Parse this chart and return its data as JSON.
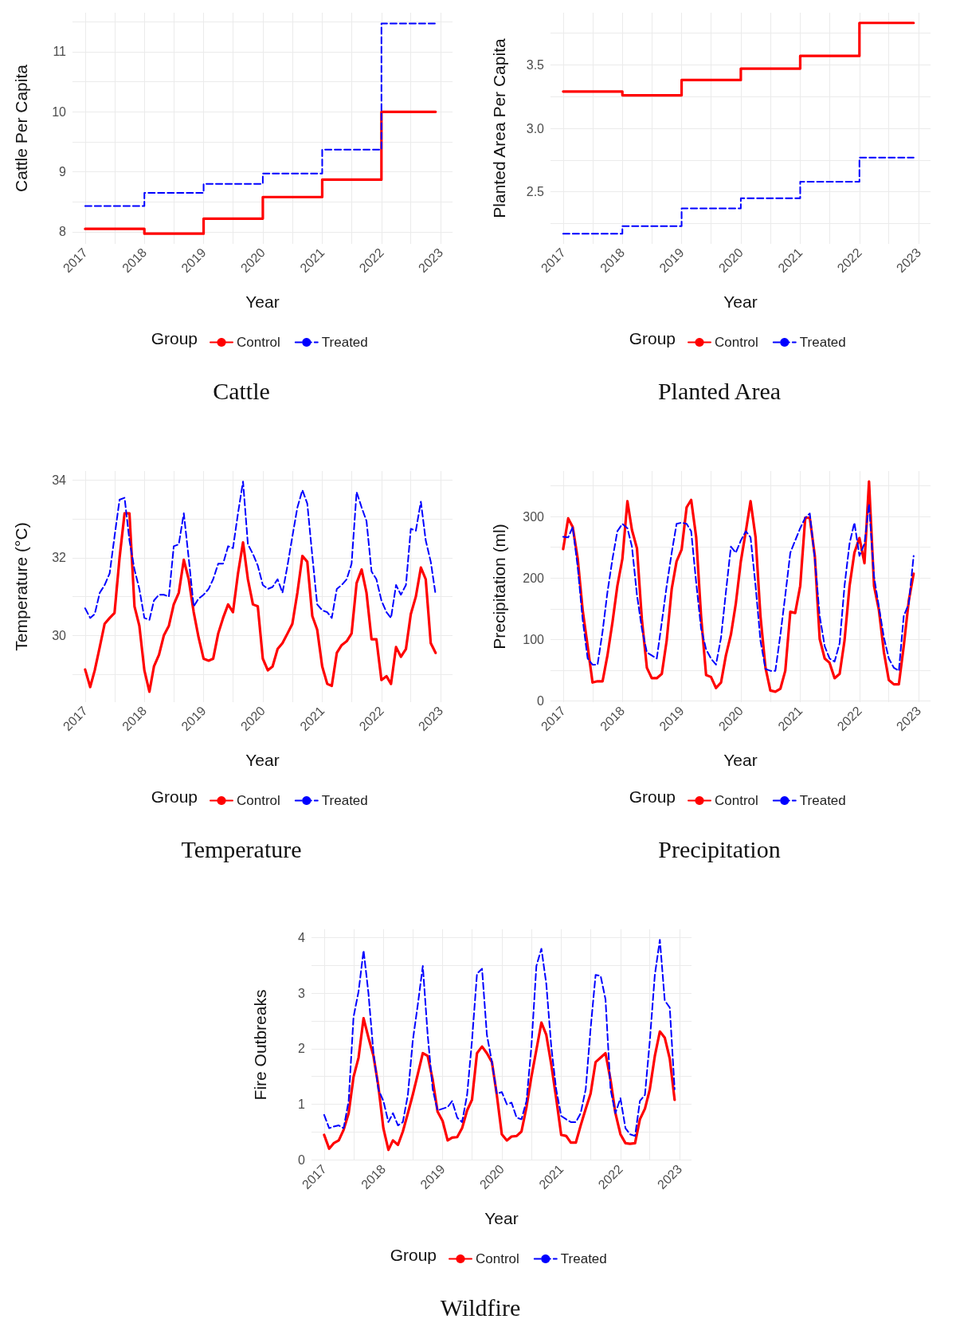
{
  "chart_data": [
    {
      "type": "step",
      "title": "Cattle",
      "xlabel": "Year",
      "ylabel": "Cattle Per Capita",
      "legend_title": "Group",
      "legend": "bottom",
      "grid": true,
      "xlim": [
        "2016-10-15",
        "2023-03-15"
      ],
      "ylim": [
        7.8,
        11.65
      ],
      "xticks": [
        "2017",
        "2018",
        "2019",
        "2020",
        "2021",
        "2022",
        "2023",
        {
          "value": "2017-07",
          "label": null
        },
        {
          "value": "2018-07",
          "label": null
        },
        {
          "value": "2019-07",
          "label": null
        },
        {
          "value": "2020-07",
          "label": null
        },
        {
          "value": "2021-07",
          "label": null
        },
        {
          "value": "2022-07",
          "label": null
        }
      ],
      "yticks": [
        8,
        9,
        10,
        11,
        {
          "value": 8.5,
          "label": null
        },
        {
          "value": 9.5,
          "label": null
        },
        {
          "value": 10.5,
          "label": null
        },
        {
          "value": 11.5,
          "label": null
        }
      ],
      "x": [
        "2017-01",
        "2018-01",
        "2019-01",
        "2020-01",
        "2021-01",
        "2022-01",
        "2022-12"
      ],
      "series": [
        {
          "name": "Control",
          "color": "#ff0000",
          "line_style": "solid",
          "values": [
            8.05,
            7.97,
            8.22,
            8.58,
            8.87,
            10.0,
            10.0
          ]
        },
        {
          "name": "Treated",
          "color": "#0000ff",
          "line_style": "dashed",
          "values": [
            8.43,
            8.65,
            8.8,
            8.97,
            9.37,
            11.47,
            11.47
          ]
        }
      ]
    },
    {
      "type": "step",
      "title": "Planted Area",
      "xlabel": "Year",
      "ylabel": "Planted Area Per Capita",
      "legend_title": "Group",
      "legend": "bottom",
      "grid": true,
      "xlim": [
        "2016-10-15",
        "2023-03-15"
      ],
      "ylim": [
        2.09,
        3.91
      ],
      "xticks": [
        "2017",
        "2018",
        "2019",
        "2020",
        "2021",
        "2022",
        "2023",
        {
          "value": "2017-07",
          "label": null
        },
        {
          "value": "2018-07",
          "label": null
        },
        {
          "value": "2019-07",
          "label": null
        },
        {
          "value": "2020-07",
          "label": null
        },
        {
          "value": "2021-07",
          "label": null
        },
        {
          "value": "2022-07",
          "label": null
        }
      ],
      "yticks": [
        2.5,
        {
          "value": 3,
          "label": "3.0"
        },
        3.5,
        {
          "value": 2.25,
          "label": null
        },
        {
          "value": 2.75,
          "label": null
        },
        {
          "value": 3.25,
          "label": null
        },
        {
          "value": 3.75,
          "label": null
        }
      ],
      "x": [
        "2017-01",
        "2018-01",
        "2019-01",
        "2020-01",
        "2021-01",
        "2022-01",
        "2022-12"
      ],
      "series": [
        {
          "name": "Control",
          "color": "#ff0000",
          "line_style": "solid",
          "values": [
            3.29,
            3.26,
            3.38,
            3.47,
            3.57,
            3.83,
            3.83
          ]
        },
        {
          "name": "Treated",
          "color": "#0000ff",
          "line_style": "dashed",
          "values": [
            2.17,
            2.23,
            2.37,
            2.45,
            2.58,
            2.77,
            2.77
          ]
        }
      ]
    },
    {
      "type": "line",
      "title": "Temperature",
      "xlabel": "Year",
      "ylabel": "Temperature (°C)",
      "legend_title": "Group",
      "legend": "bottom",
      "grid": true,
      "xlim": [
        "2016-10-15",
        "2023-03-15"
      ],
      "ylim": [
        28.28,
        34.24
      ],
      "xticks": [
        "2017",
        "2018",
        "2019",
        "2020",
        "2021",
        "2022",
        "2023",
        {
          "value": "2017-07",
          "label": null
        },
        {
          "value": "2018-07",
          "label": null
        },
        {
          "value": "2019-07",
          "label": null
        },
        {
          "value": "2020-07",
          "label": null
        },
        {
          "value": "2021-07",
          "label": null
        },
        {
          "value": "2022-07",
          "label": null
        }
      ],
      "yticks": [
        30,
        32,
        34,
        {
          "value": 29,
          "label": null
        },
        {
          "value": 31,
          "label": null
        },
        {
          "value": 33,
          "label": null
        }
      ],
      "x": [
        "2017-01",
        "2017-02",
        "2017-03",
        "2017-04",
        "2017-05",
        "2017-06",
        "2017-07",
        "2017-08",
        "2017-09",
        "2017-10",
        "2017-11",
        "2017-12",
        "2018-01",
        "2018-02",
        "2018-03",
        "2018-04",
        "2018-05",
        "2018-06",
        "2018-07",
        "2018-08",
        "2018-09",
        "2018-10",
        "2018-11",
        "2018-12",
        "2019-01",
        "2019-02",
        "2019-03",
        "2019-04",
        "2019-05",
        "2019-06",
        "2019-07",
        "2019-08",
        "2019-09",
        "2019-10",
        "2019-11",
        "2019-12",
        "2020-01",
        "2020-02",
        "2020-03",
        "2020-04",
        "2020-05",
        "2020-06",
        "2020-07",
        "2020-08",
        "2020-09",
        "2020-10",
        "2020-11",
        "2020-12",
        "2021-01",
        "2021-02",
        "2021-03",
        "2021-04",
        "2021-05",
        "2021-06",
        "2021-07",
        "2021-08",
        "2021-09",
        "2021-10",
        "2021-11",
        "2021-12",
        "2022-01",
        "2022-02",
        "2022-03",
        "2022-04",
        "2022-05",
        "2022-06",
        "2022-07",
        "2022-08",
        "2022-09",
        "2022-10",
        "2022-11",
        "2022-12"
      ],
      "series": [
        {
          "name": "Control",
          "color": "#ff0000",
          "line_style": "solid",
          "values": [
            29.12,
            28.67,
            29.1,
            29.7,
            30.3,
            30.45,
            30.58,
            32.0,
            33.15,
            33.15,
            30.75,
            30.25,
            29.1,
            28.55,
            29.2,
            29.5,
            30.0,
            30.25,
            30.8,
            31.1,
            31.95,
            31.45,
            30.6,
            29.95,
            29.4,
            29.35,
            29.4,
            30.05,
            30.45,
            30.8,
            30.6,
            31.6,
            32.4,
            31.45,
            30.8,
            30.75,
            29.4,
            29.1,
            29.2,
            29.65,
            29.8,
            30.05,
            30.3,
            31.1,
            32.05,
            31.9,
            30.5,
            30.15,
            29.2,
            28.75,
            28.7,
            29.55,
            29.75,
            29.85,
            30.05,
            31.35,
            31.7,
            31.1,
            29.9,
            29.9,
            28.85,
            28.95,
            28.75,
            29.7,
            29.45,
            29.65,
            30.55,
            31.0,
            31.75,
            31.45,
            29.8,
            29.55
          ]
        },
        {
          "name": "Treated",
          "color": "#0000ff",
          "line_style": "dashed",
          "values": [
            30.7,
            30.45,
            30.55,
            31.1,
            31.3,
            31.6,
            32.55,
            33.5,
            33.55,
            32.45,
            31.7,
            31.2,
            30.45,
            30.4,
            30.9,
            31.05,
            31.05,
            31.0,
            32.3,
            32.35,
            33.15,
            32.0,
            30.75,
            30.95,
            31.05,
            31.2,
            31.45,
            31.85,
            31.85,
            32.3,
            32.25,
            33.15,
            33.97,
            32.35,
            32.1,
            31.8,
            31.3,
            31.2,
            31.25,
            31.45,
            31.1,
            31.8,
            32.55,
            33.3,
            33.75,
            33.4,
            32.05,
            30.8,
            30.65,
            30.6,
            30.45,
            31.2,
            31.3,
            31.45,
            31.85,
            33.7,
            33.3,
            32.95,
            31.65,
            31.45,
            30.9,
            30.6,
            30.45,
            31.3,
            31.05,
            31.3,
            32.75,
            32.7,
            33.45,
            32.45,
            31.9,
            31.05
          ]
        }
      ]
    },
    {
      "type": "line",
      "title": "Precipitation",
      "xlabel": "Year",
      "ylabel": "Precipitation (ml)",
      "legend_title": "Group",
      "legend": "bottom",
      "grid": true,
      "xlim": [
        "2016-10-15",
        "2023-03-15"
      ],
      "ylim": [
        -2,
        374
      ],
      "xticks": [
        "2017",
        "2018",
        "2019",
        "2020",
        "2021",
        "2022",
        "2023",
        {
          "value": "2017-07",
          "label": null
        },
        {
          "value": "2018-07",
          "label": null
        },
        {
          "value": "2019-07",
          "label": null
        },
        {
          "value": "2020-07",
          "label": null
        },
        {
          "value": "2021-07",
          "label": null
        },
        {
          "value": "2022-07",
          "label": null
        }
      ],
      "yticks": [
        0,
        100,
        200,
        300,
        {
          "value": 50,
          "label": null
        },
        {
          "value": 150,
          "label": null
        },
        {
          "value": 250,
          "label": null
        },
        {
          "value": 350,
          "label": null
        }
      ],
      "x": [
        "2017-01",
        "2017-02",
        "2017-03",
        "2017-04",
        "2017-05",
        "2017-06",
        "2017-07",
        "2017-08",
        "2017-09",
        "2017-10",
        "2017-11",
        "2017-12",
        "2018-01",
        "2018-02",
        "2018-03",
        "2018-04",
        "2018-05",
        "2018-06",
        "2018-07",
        "2018-08",
        "2018-09",
        "2018-10",
        "2018-11",
        "2018-12",
        "2019-01",
        "2019-02",
        "2019-03",
        "2019-04",
        "2019-05",
        "2019-06",
        "2019-07",
        "2019-08",
        "2019-09",
        "2019-10",
        "2019-11",
        "2019-12",
        "2020-01",
        "2020-02",
        "2020-03",
        "2020-04",
        "2020-05",
        "2020-06",
        "2020-07",
        "2020-08",
        "2020-09",
        "2020-10",
        "2020-11",
        "2020-12",
        "2021-01",
        "2021-02",
        "2021-03",
        "2021-04",
        "2021-05",
        "2021-06",
        "2021-07",
        "2021-08",
        "2021-09",
        "2021-10",
        "2021-11",
        "2021-12",
        "2022-01",
        "2022-02",
        "2022-03",
        "2022-04",
        "2022-05",
        "2022-06",
        "2022-07",
        "2022-08",
        "2022-09",
        "2022-10",
        "2022-11",
        "2022-12"
      ],
      "series": [
        {
          "name": "Control",
          "color": "#ff0000",
          "line_style": "solid",
          "values": [
            247,
            297,
            283,
            231,
            148,
            89,
            30,
            32,
            32,
            74,
            128,
            187,
            231,
            325,
            278,
            248,
            133,
            54,
            37,
            37,
            44,
            98,
            182,
            227,
            246,
            315,
            327,
            266,
            138,
            42,
            39,
            21,
            30,
            74,
            108,
            158,
            227,
            276,
            325,
            266,
            138,
            54,
            17,
            15,
            20,
            49,
            145,
            143,
            187,
            298,
            298,
            236,
            101,
            69,
            62,
            37,
            44,
            98,
            187,
            241,
            265,
            224,
            357,
            187,
            148,
            79,
            34,
            27,
            27,
            89,
            163,
            207
          ]
        },
        {
          "name": "Treated",
          "color": "#0000ff",
          "line_style": "dashed",
          "values": [
            267,
            266,
            283,
            217,
            133,
            69,
            59,
            59,
            113,
            177,
            231,
            276,
            288,
            281,
            251,
            172,
            118,
            79,
            74,
            69,
            128,
            187,
            241,
            288,
            290,
            288,
            276,
            192,
            118,
            84,
            69,
            59,
            103,
            177,
            251,
            241,
            261,
            276,
            266,
            187,
            98,
            52,
            49,
            49,
            108,
            172,
            241,
            261,
            281,
            298,
            305,
            231,
            138,
            89,
            69,
            64,
            94,
            187,
            256,
            290,
            236,
            256,
            320,
            202,
            153,
            103,
            69,
            54,
            49,
            138,
            158,
            236
          ]
        }
      ]
    },
    {
      "type": "line",
      "title": "Wildfire",
      "xlabel": "Year",
      "ylabel": "Fire Outbreaks",
      "legend_title": "Group",
      "legend": "bottom",
      "grid": true,
      "xlim": [
        "2016-10-15",
        "2023-03-15"
      ],
      "ylim": [
        -0.01,
        4.15
      ],
      "xticks": [
        "2017",
        "2018",
        "2019",
        "2020",
        "2021",
        "2022",
        "2023",
        {
          "value": "2017-07",
          "label": null
        },
        {
          "value": "2018-07",
          "label": null
        },
        {
          "value": "2019-07",
          "label": null
        },
        {
          "value": "2020-07",
          "label": null
        },
        {
          "value": "2021-07",
          "label": null
        },
        {
          "value": "2022-07",
          "label": null
        }
      ],
      "yticks": [
        0,
        1,
        2,
        3,
        4,
        {
          "value": 0.5,
          "label": null
        },
        {
          "value": 1.5,
          "label": null
        },
        {
          "value": 2.5,
          "label": null
        },
        {
          "value": 3.5,
          "label": null
        }
      ],
      "x": [
        "2017-01",
        "2017-02",
        "2017-03",
        "2017-04",
        "2017-05",
        "2017-06",
        "2017-07",
        "2017-08",
        "2017-09",
        "2017-10",
        "2017-11",
        "2017-12",
        "2018-01",
        "2018-02",
        "2018-03",
        "2018-04",
        "2018-05",
        "2018-06",
        "2018-07",
        "2018-08",
        "2018-09",
        "2018-10",
        "2018-11",
        "2018-12",
        "2019-01",
        "2019-02",
        "2019-03",
        "2019-04",
        "2019-05",
        "2019-06",
        "2019-07",
        "2019-08",
        "2019-09",
        "2019-10",
        "2019-11",
        "2019-12",
        "2020-01",
        "2020-02",
        "2020-03",
        "2020-04",
        "2020-05",
        "2020-06",
        "2020-07",
        "2020-08",
        "2020-09",
        "2020-10",
        "2020-11",
        "2020-12",
        "2021-01",
        "2021-02",
        "2021-03",
        "2021-04",
        "2021-05",
        "2021-06",
        "2021-07",
        "2021-08",
        "2021-09",
        "2021-10",
        "2021-11",
        "2021-12",
        "2022-01",
        "2022-02",
        "2022-03",
        "2022-04",
        "2022-05",
        "2022-06",
        "2022-07",
        "2022-08",
        "2022-09",
        "2022-10",
        "2022-11",
        "2022-12"
      ],
      "series": [
        {
          "name": "Control",
          "color": "#ff0000",
          "line_style": "solid",
          "values": [
            0.45,
            0.2,
            0.3,
            0.35,
            0.54,
            0.84,
            1.49,
            1.84,
            2.55,
            2.2,
            1.87,
            1.33,
            0.57,
            0.18,
            0.35,
            0.27,
            0.51,
            0.84,
            1.17,
            1.54,
            1.92,
            1.87,
            1.44,
            0.87,
            0.7,
            0.35,
            0.4,
            0.41,
            0.57,
            0.89,
            1.08,
            1.92,
            2.04,
            1.92,
            1.76,
            1.17,
            0.46,
            0.35,
            0.42,
            0.43,
            0.51,
            0.95,
            1.49,
            1.98,
            2.47,
            2.25,
            1.71,
            1.11,
            0.45,
            0.43,
            0.31,
            0.31,
            0.62,
            0.92,
            1.19,
            1.76,
            1.84,
            1.92,
            1.44,
            0.84,
            0.46,
            0.3,
            0.29,
            0.3,
            0.73,
            0.92,
            1.27,
            1.87,
            2.31,
            2.2,
            1.82,
            1.08
          ]
        },
        {
          "name": "Treated",
          "color": "#0000ff",
          "line_style": "dashed",
          "values": [
            0.81,
            0.57,
            0.6,
            0.62,
            0.57,
            1.06,
            2.57,
            3.03,
            3.77,
            3.0,
            1.92,
            1.27,
            1.06,
            0.68,
            0.84,
            0.62,
            0.68,
            1.17,
            2.14,
            2.79,
            3.49,
            2.25,
            1.27,
            0.89,
            0.92,
            0.95,
            1.06,
            0.76,
            0.68,
            1.17,
            2.14,
            3.35,
            3.44,
            2.25,
            1.76,
            1.19,
            1.22,
            1.0,
            1.03,
            0.76,
            0.73,
            1.06,
            2.03,
            3.49,
            3.8,
            3.17,
            2.03,
            1.27,
            0.79,
            0.73,
            0.68,
            0.68,
            0.84,
            1.27,
            2.36,
            3.33,
            3.31,
            2.89,
            1.27,
            0.84,
            1.11,
            0.57,
            0.46,
            0.43,
            1.06,
            1.17,
            2.14,
            3.33,
            3.96,
            2.87,
            2.74,
            1.27
          ]
        }
      ]
    }
  ]
}
